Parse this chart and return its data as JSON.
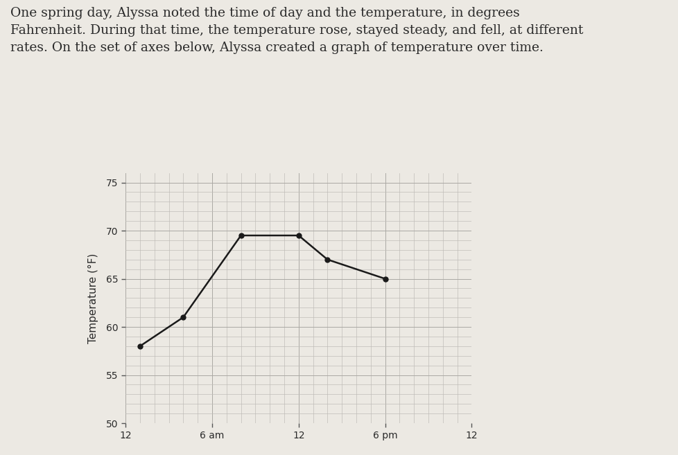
{
  "title_text": "One spring day, Alyssa noted the time of day and the temperature, in degrees\nFahrenheit. During that time, the temperature rose, stayed steady, and fell, at different\nrates. On the set of axes below, Alyssa created a graph of temperature over time.",
  "ylabel": "Temperature (°F)",
  "xlim": [
    0,
    12
  ],
  "ylim": [
    50,
    76
  ],
  "xticks": [
    0,
    3,
    6,
    9,
    12
  ],
  "xticklabels": [
    "12",
    "6 am",
    "12",
    "6 pm",
    "12"
  ],
  "yticks": [
    50,
    55,
    60,
    65,
    70,
    75
  ],
  "yticklabels": [
    "50",
    "55",
    "60",
    "65",
    "70",
    "75"
  ],
  "x_data": [
    0.5,
    2,
    4,
    6,
    7,
    9
  ],
  "y_data": [
    58,
    61,
    69.5,
    69.5,
    67,
    65
  ],
  "line_color": "#1a1a1a",
  "marker_color": "#1a1a1a",
  "marker_size": 5,
  "line_width": 1.8,
  "grid_color": "#c0bdb8",
  "grid_linewidth": 0.5,
  "bg_color": "#ece9e3",
  "text_color": "#2a2a2a",
  "title_fontsize": 13.5,
  "axis_label_fontsize": 11,
  "tick_fontsize": 10,
  "minor_xtick_step": 0.5,
  "minor_ytick_step": 1
}
